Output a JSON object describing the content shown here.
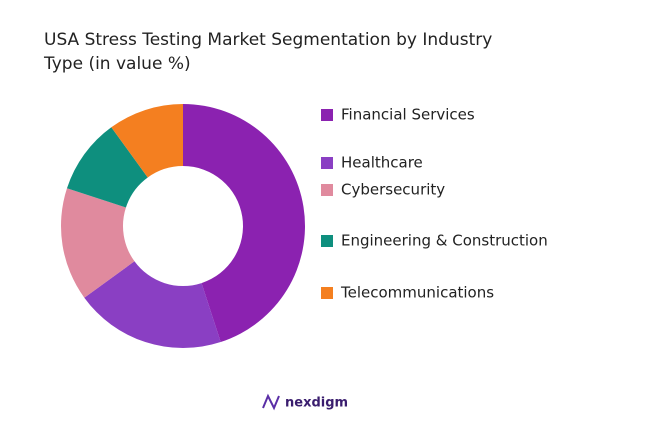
{
  "chart_data": {
    "type": "donut",
    "title": [
      "USA Stress Testing Market Segmentation by Industry",
      "Type (in value %)"
    ],
    "categories": [
      "Financial Services",
      "Healthcare",
      "Cybersecurity",
      "Engineering & Construction",
      "Telecommunications"
    ],
    "values": [
      45,
      20,
      15,
      10,
      10
    ],
    "colors": [
      "#8b22b0",
      "#8a3fc3",
      "#e08a9e",
      "#0e8f7e",
      "#f47f20"
    ],
    "legend": "right"
  },
  "branding": "nexdigm"
}
